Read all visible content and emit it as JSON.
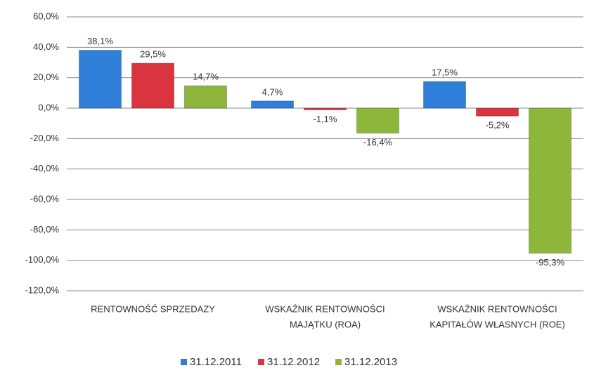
{
  "chart_data": {
    "type": "bar",
    "categories": [
      [
        "RENTOWNOŚĆ SPRZEDAZY"
      ],
      [
        "WSKAŹNIK RENTOWNOŚCI",
        "MAJĄTKU (ROA)"
      ],
      [
        "WSKAŹNIK RENTOWNOŚCI",
        "KAPITAŁÓW WŁASNYCH (ROE)"
      ]
    ],
    "series": [
      {
        "name": "31.12.2011",
        "color": "#2f7fd8",
        "values": [
          38.1,
          4.7,
          17.5
        ],
        "value_labels": [
          "38,1%",
          "4,7%",
          "17,5%"
        ]
      },
      {
        "name": "31.12.2012",
        "color": "#d9343f",
        "values": [
          29.5,
          -1.1,
          -5.2
        ],
        "value_labels": [
          "29,5%",
          "-1,1%",
          "-5,2%"
        ]
      },
      {
        "name": "31.12.2013",
        "color": "#8db63a",
        "values": [
          14.7,
          -16.4,
          -95.3
        ],
        "value_labels": [
          "14,7%",
          "-16,4%",
          "-95,3%"
        ]
      }
    ],
    "ylim": [
      -120,
      60
    ],
    "yticks": [
      {
        "value": -120,
        "label": "-120,0%"
      },
      {
        "value": -100,
        "label": "-100,0%"
      },
      {
        "value": -80,
        "label": "-80,0%"
      },
      {
        "value": -60,
        "label": "-60,0%"
      },
      {
        "value": -40,
        "label": "-40,0%"
      },
      {
        "value": -20,
        "label": "-20,0%"
      },
      {
        "value": 0,
        "label": "0,0%"
      },
      {
        "value": 20,
        "label": "20,0%"
      },
      {
        "value": 40,
        "label": "40,0%"
      },
      {
        "value": 60,
        "label": "60,0%"
      }
    ],
    "grid": true,
    "legend": "bottom"
  }
}
